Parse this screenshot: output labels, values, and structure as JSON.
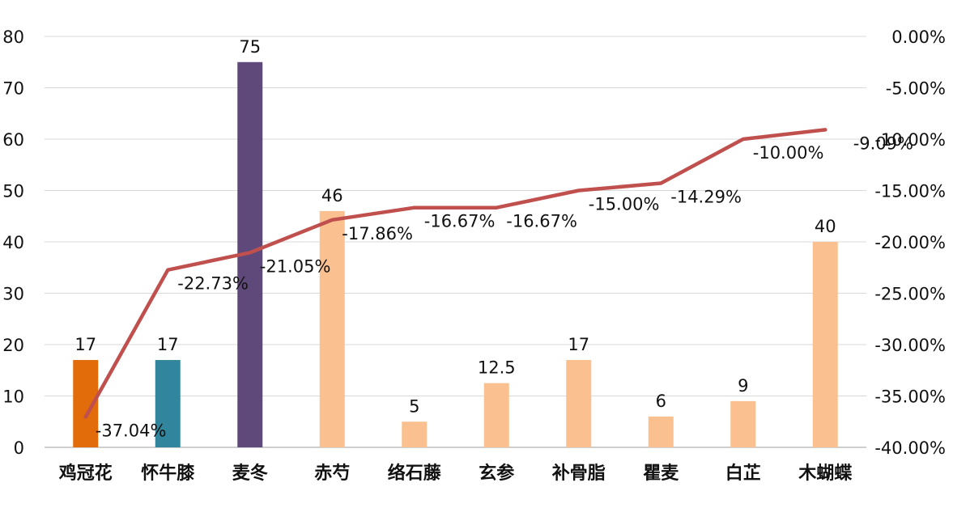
{
  "chart_data": {
    "type": "bar",
    "categories": [
      "鸡冠花",
      "怀牛膝",
      "麦冬",
      "赤芍",
      "络石藤",
      "玄参",
      "补骨脂",
      "瞿麦",
      "白芷",
      "木蝴蝶"
    ],
    "series": [
      {
        "type": "bar",
        "axis": "left",
        "values": [
          17,
          17,
          75,
          46,
          5,
          12.5,
          17,
          6,
          9,
          40
        ],
        "value_labels": [
          "17",
          "17",
          "75",
          "46",
          "5",
          "12.5",
          "17",
          "6",
          "9",
          "40"
        ],
        "colors": [
          "#E36C0A",
          "#31859C",
          "#5F497A",
          "#FAC090",
          "#FAC090",
          "#FAC090",
          "#FAC090",
          "#FAC090",
          "#FAC090",
          "#FAC090"
        ]
      },
      {
        "type": "line",
        "axis": "right",
        "values": [
          -37.04,
          -22.73,
          -21.05,
          -17.86,
          -16.67,
          -16.67,
          -15.0,
          -14.29,
          -10.0,
          -9.09
        ],
        "value_labels": [
          "-37.04%",
          "-22.73%",
          "-21.05%",
          "-17.86%",
          "-16.67%",
          "-16.67%",
          "-15.00%",
          "-14.29%",
          "-10.00%",
          "-9.09%"
        ],
        "color": "#C0504D"
      }
    ],
    "y_left": {
      "lim": [
        0,
        80
      ],
      "ticks": [
        "0",
        "10",
        "20",
        "30",
        "40",
        "50",
        "60",
        "70",
        "80"
      ]
    },
    "y_right": {
      "lim": [
        -40,
        0
      ],
      "ticks": [
        "-40.00%",
        "-35.00%",
        "-30.00%",
        "-25.00%",
        "-20.00%",
        "-15.00%",
        "-10.00%",
        "-5.00%",
        "0.00%"
      ]
    },
    "grid": true,
    "gridline_color": "#D9D9D9",
    "legend": "none"
  }
}
